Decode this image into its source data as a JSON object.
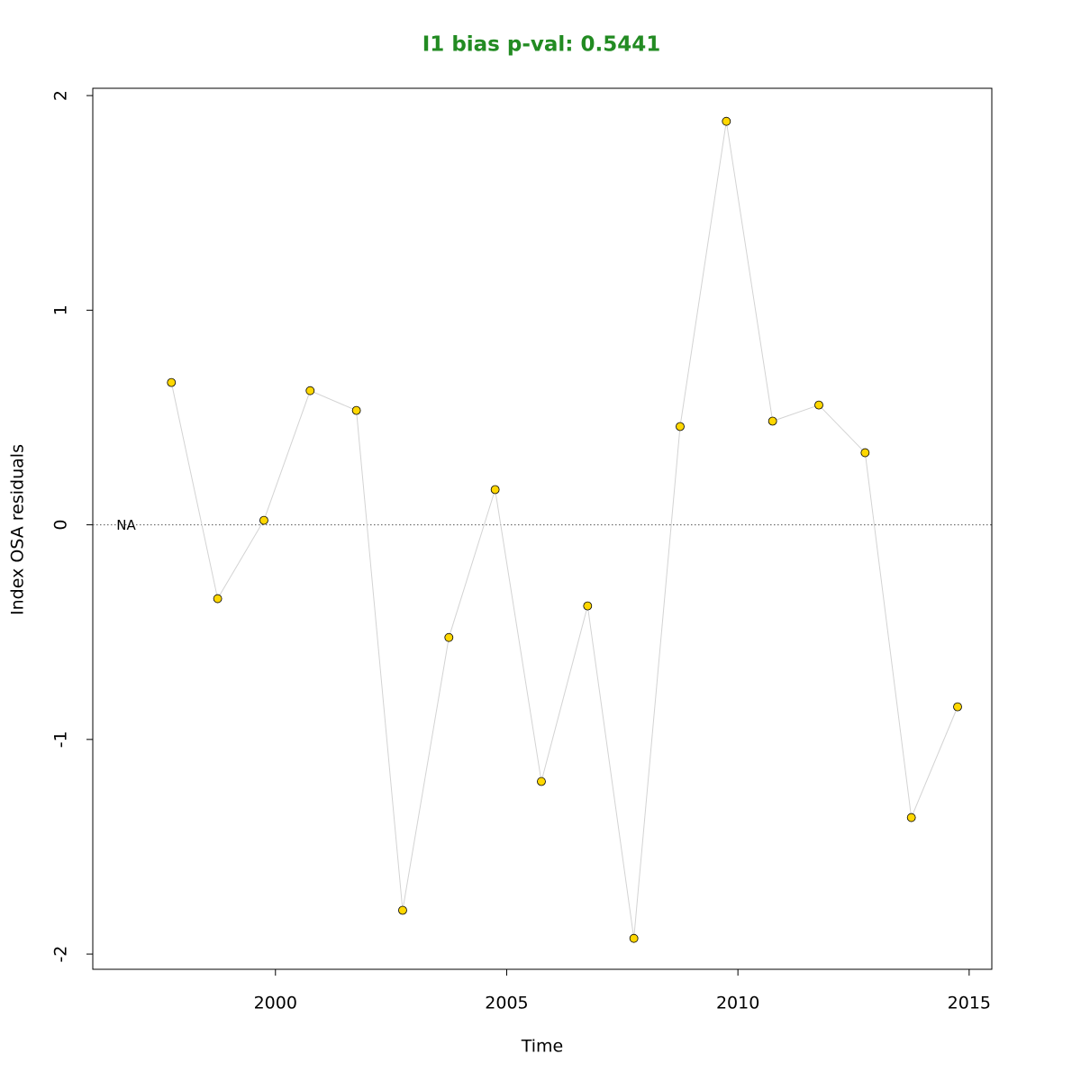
{
  "chart_data": {
    "type": "line",
    "title": "I1 bias p-val: 0.5441",
    "x_label": "Time",
    "y_label": "Index OSA residuals",
    "annotation": "NA",
    "hline": 0,
    "x": [
      1997.75,
      1998.75,
      1999.75,
      2000.75,
      2001.75,
      2002.75,
      2003.75,
      2004.75,
      2005.75,
      2006.75,
      2007.75,
      2008.75,
      2009.75,
      2010.75,
      2011.75,
      2012.75,
      2013.75,
      2014.75
    ],
    "series": [
      {
        "name": "I1",
        "color": "#ffd700",
        "line_color": "#d3d3d3",
        "values": [
          0.663,
          -0.344,
          0.021,
          0.625,
          0.533,
          -1.796,
          -0.525,
          0.164,
          -1.196,
          -0.378,
          -1.927,
          0.458,
          1.88,
          0.483,
          0.558,
          0.336,
          -1.364,
          -0.848
        ]
      }
    ],
    "xlim": [
      1996.05,
      2015.49
    ],
    "xticks": [
      2000,
      2005,
      2010,
      2015
    ],
    "ylim": [
      -2.071,
      2.034
    ],
    "yticks": [
      -2,
      -1,
      0,
      1,
      2
    ]
  }
}
